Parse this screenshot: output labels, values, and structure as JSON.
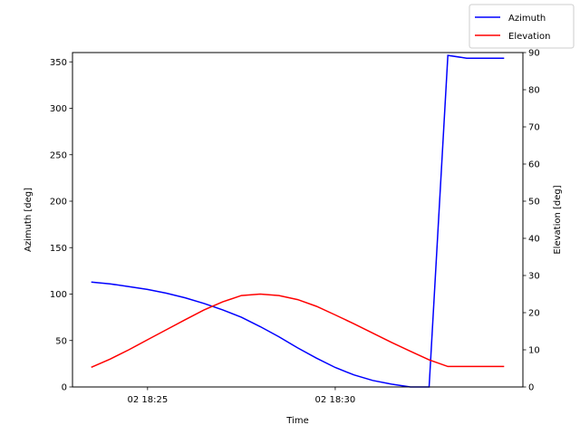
{
  "chart_data": {
    "type": "line",
    "title": "",
    "xlabel": "Time",
    "ylabel_left": "Azimuth [deg]",
    "ylabel_right": "Elevation [deg]",
    "x_unit": "minutes after 18:20 on day 02",
    "x_ticks": [
      {
        "value": 5,
        "label": "02 18:25"
      },
      {
        "value": 10,
        "label": "02 18:30"
      }
    ],
    "xlim": [
      3.0,
      15.0
    ],
    "ylim_left": [
      0,
      360
    ],
    "ylim_right": [
      0,
      90
    ],
    "yticks_left": [
      0,
      50,
      100,
      150,
      200,
      250,
      300,
      350
    ],
    "yticks_right": [
      0,
      10,
      20,
      30,
      40,
      50,
      60,
      70,
      80,
      90
    ],
    "grid": false,
    "legend_position": "top-right, outside plot",
    "series": [
      {
        "name": "Azimuth",
        "axis": "left",
        "color": "#0000ff",
        "x": [
          3.5,
          4.0,
          4.5,
          5.0,
          5.5,
          6.0,
          6.5,
          7.0,
          7.5,
          8.0,
          8.5,
          9.0,
          9.5,
          10.0,
          10.5,
          11.0,
          11.5,
          12.0,
          12.5,
          13.0,
          13.5,
          14.0,
          14.5
        ],
        "values": [
          113,
          111,
          108,
          105,
          101,
          96,
          90,
          83,
          75,
          65,
          54,
          42,
          31,
          21,
          13,
          7,
          3,
          0,
          0,
          357,
          354,
          354,
          354
        ]
      },
      {
        "name": "Elevation",
        "axis": "right",
        "color": "#ff0000",
        "x": [
          3.5,
          4.0,
          4.5,
          5.0,
          5.5,
          6.0,
          6.5,
          7.0,
          7.5,
          8.0,
          8.5,
          9.0,
          9.5,
          10.0,
          10.5,
          11.0,
          11.5,
          12.0,
          12.5,
          13.0,
          13.5,
          14.0,
          14.5
        ],
        "values": [
          5.3,
          7.5,
          10.0,
          12.7,
          15.4,
          18.1,
          20.7,
          22.9,
          24.6,
          25.0,
          24.6,
          23.5,
          21.7,
          19.4,
          17.0,
          14.5,
          12.0,
          9.6,
          7.3,
          5.5,
          5.5,
          5.5,
          5.5
        ]
      }
    ]
  }
}
